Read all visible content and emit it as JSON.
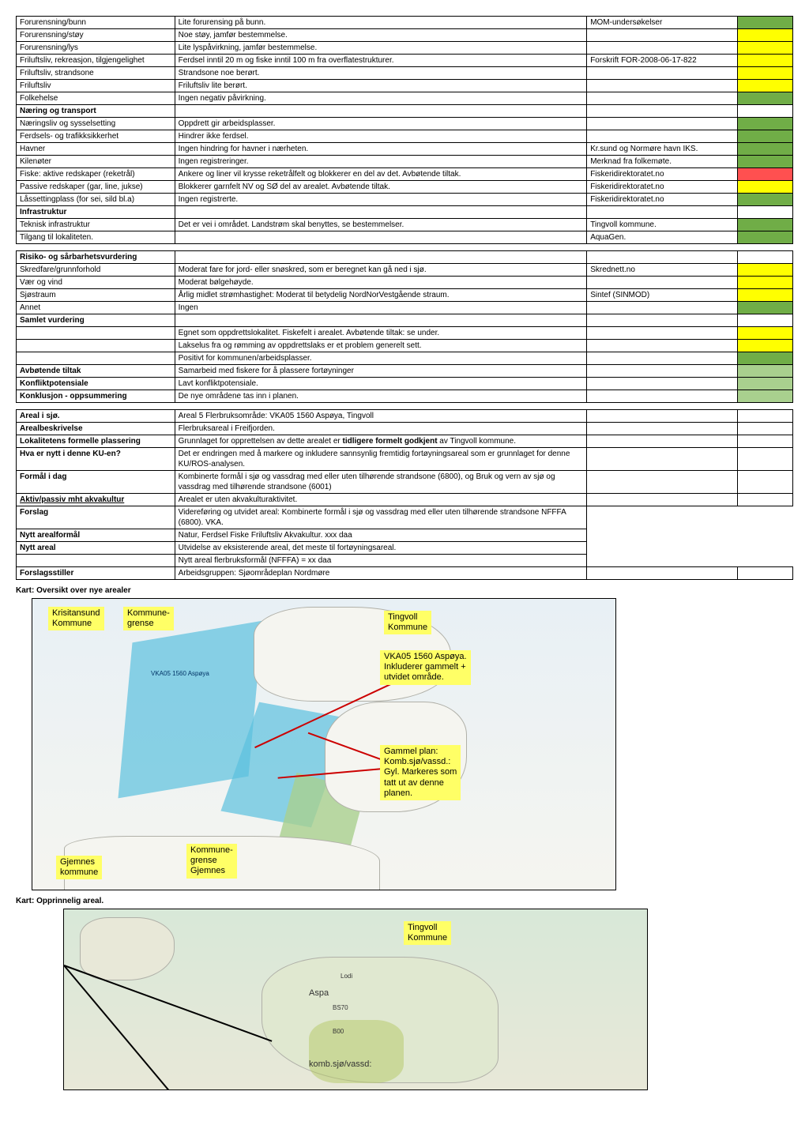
{
  "table1": {
    "rows": [
      {
        "c1": "Forurensning/bunn",
        "c2": "Lite forurensing på bunn.",
        "c3": "MOM-undersøkelser",
        "color": "green"
      },
      {
        "c1": "Forurensning/støy",
        "c2": "Noe støy, jamfør bestemmelse.",
        "c3": "",
        "color": "yellow"
      },
      {
        "c1": "Forurensning/lys",
        "c2": "Lite lyspåvirkning, jamfør bestemmelse.",
        "c3": "",
        "color": "yellow"
      },
      {
        "c1": "Friluftsliv, rekreasjon, tilgjengelighet",
        "c2": "Ferdsel inntil 20 m og fiske inntil 100 m fra overflatestrukturer.",
        "c3": "Forskrift FOR-2008-06-17-822",
        "color": "yellow"
      },
      {
        "c1": "Friluftsliv, strandsone",
        "c2": "Strandsone noe berørt.",
        "c3": "",
        "color": "yellow"
      },
      {
        "c1": "Friluftsliv",
        "c2": "Friluftsliv lite berørt.",
        "c3": "",
        "color": "yellow"
      },
      {
        "c1": "Folkehelse",
        "c2": "Ingen negativ påvirkning.",
        "c3": "",
        "color": "green"
      },
      {
        "c1": "Næring og transport",
        "c2": "",
        "c3": "",
        "color": "",
        "bold": true
      },
      {
        "c1": "Næringsliv og sysselsetting",
        "c2": "Oppdrett gir arbeidsplasser.",
        "c3": "",
        "color": "green"
      },
      {
        "c1": "Ferdsels- og trafikksikkerhet",
        "c2": "Hindrer ikke ferdsel.",
        "c3": "",
        "color": "green"
      },
      {
        "c1": "Havner",
        "c2": "Ingen hindring for havner i nærheten.",
        "c3": "Kr.sund og Normøre havn IKS.",
        "color": "green"
      },
      {
        "c1": "Kilenøter",
        "c2": "Ingen registreringer.",
        "c3": "Merknad fra folkemøte.",
        "color": "green"
      },
      {
        "c1": "Fiske: aktive redskaper (reketrål)",
        "c2": "Ankere og liner vil krysse reketrålfelt og blokkerer en del av det. Avbøtende tiltak.",
        "c3": "Fiskeridirektoratet.no",
        "color": "red"
      },
      {
        "c1": "Passive redskaper (gar, line, jukse)",
        "c2": "Blokkerer garnfelt NV og SØ del av arealet. Avbøtende tiltak.",
        "c3": "Fiskeridirektoratet.no",
        "color": "yellow"
      },
      {
        "c1": "Låssettingplass (for sei, sild bl.a)",
        "c2": "Ingen registrerte.",
        "c3": "Fiskeridirektoratet.no",
        "color": "green"
      },
      {
        "c1": "Infrastruktur",
        "c2": "",
        "c3": "",
        "color": "",
        "bold": true
      },
      {
        "c1": "Teknisk infrastruktur",
        "c2": "Det er vei i området. Landstrøm skal benyttes, se bestemmelser.",
        "c3": "Tingvoll kommune.",
        "color": "green"
      },
      {
        "c1": "Tilgang til lokaliteten.",
        "c2": "",
        "c3": "AquaGen.",
        "color": "green"
      }
    ]
  },
  "table2": {
    "rows": [
      {
        "c1": "Risiko- og sårbarhetsvurdering",
        "c2": "",
        "c3": "",
        "color": "",
        "bold": true
      },
      {
        "c1": "Skredfare/grunnforhold",
        "c2": "Moderat fare for jord- eller snøskred, som er beregnet kan  gå ned i sjø.",
        "c3": "Skrednett.no",
        "color": "yellow"
      },
      {
        "c1": "Vær og vind",
        "c2": "Moderat bølgehøyde.",
        "c3": "",
        "color": "yellow"
      },
      {
        "c1": "Sjøstraum",
        "c2": "Årlig midlet strømhastighet: Moderat til betydelig NordNorVestgående straum.",
        "c3": "Sintef (SINMOD)",
        "color": "yellow"
      },
      {
        "c1": "Annet",
        "c2": "Ingen",
        "c3": "",
        "color": "green"
      },
      {
        "c1": "Samlet vurdering",
        "c2": "",
        "c3": "",
        "color": "",
        "bold": true
      },
      {
        "c1": "",
        "c2": "Egnet som oppdrettslokalitet. Fiskefelt i arealet. Avbøtende tiltak: se under.",
        "c3": "",
        "color": "yellow"
      },
      {
        "c1": "",
        "c2": "Lakselus fra og rømming av oppdrettslaks er et problem generelt sett.",
        "c3": "",
        "color": "yellow"
      },
      {
        "c1": "",
        "c2": "Positivt for kommunen/arbeidsplasser.",
        "c3": "",
        "color": "green"
      },
      {
        "c1": "Avbøtende tiltak",
        "c2": "Samarbeid med fiskere for å plassere fortøyninger",
        "c3": "",
        "color": "lightgreen",
        "bold": true
      },
      {
        "c1": "Konfliktpotensiale",
        "c2": "Lavt konfliktpotensiale.",
        "c3": "",
        "color": "lightgreen",
        "bold": true
      },
      {
        "c1": "Konklusjon - oppsummering",
        "c2": "De nye områdene tas inn i planen.",
        "c3": "",
        "color": "lightgreen",
        "bold": true
      }
    ]
  },
  "table3": {
    "rows": [
      {
        "c1": "Areal i sjø.",
        "c2": "Areal 5 Flerbruksområde: VKA05 1560 Aspøya, Tingvoll",
        "c3": "",
        "color": "",
        "bold": true,
        "wide": false
      },
      {
        "c1": "Arealbeskrivelse",
        "c2": "Flerbruksareal i Freifjorden.",
        "c3": "",
        "bold": true
      },
      {
        "c1": "Lokalitetens formelle plassering",
        "c2": "Grunnlaget for opprettelsen av dette arealet er <b>tidligere formelt godkjent</b> av Tingvoll kommune.",
        "c3": "",
        "bold": true,
        "html": true
      },
      {
        "c1": "Hva er nytt i denne KU-en?",
        "c2": "Det er endringen med å markere og inkludere sannsynlig fremtidig fortøyningsareal som er grunnlaget for denne KU/ROS-analysen.",
        "c3": "",
        "bold": true
      },
      {
        "c1": "Formål i dag",
        "c2": "Kombinerte formål i sjø og vassdrag med eller uten tilhørende strandsone (6800), og Bruk og vern av sjø og vassdrag med tilhørende strandsone (6001)",
        "c3": "",
        "bold": true
      },
      {
        "c1": "Aktiv/passiv mht akvakultur",
        "c2": "Arealet er uten akvakulturaktivitet.",
        "c3": "",
        "bold": true,
        "underline": true
      },
      {
        "c1": "Forslag",
        "c2": "Videreføring og utvidet areal: Kombinerte formål i sjø og vassdrag med eller uten tilhørende strandsone NFFFA (6800). VKA.",
        "c3": "",
        "bold": true,
        "wide": true
      },
      {
        "c1": "Nytt arealformål",
        "c2": "Natur, Ferdsel Fiske Friluftsliv Akvakultur. xxx daa",
        "c3": "",
        "bold": true,
        "wide": true
      },
      {
        "c1": "Nytt areal",
        "c2": "Utvidelse av eksisterende areal, det meste til fortøyningsareal.",
        "c3": "",
        "bold": true,
        "wide": true
      },
      {
        "c1": "",
        "c2": "Nytt areal flerbruksformål (NFFFA) = xx daa",
        "c3": "",
        "bold": false,
        "wide": true
      },
      {
        "c1": "Forslagsstiller",
        "c2": "Arbeidsgruppen: Sjøområdeplan Nordmøre",
        "c3": "",
        "bold": true
      }
    ]
  },
  "captions": {
    "map1": "Kart: Oversikt over nye arealer",
    "map2": "Kart: Opprinnelig areal."
  },
  "map1_labels": {
    "l1": "Krisitansund\nKommune",
    "l2": "Kommune-\ngrense",
    "l3": "Tingvoll\nKommune",
    "l4": "VKA05 1560 Aspøya.\nInkluderer gammelt +\nutvidet område.",
    "l5": "Gammel plan:\nKomb.sjø/vassd.:\nGyl. Markeres som\ntatt ut av denne\nplanen.",
    "l6": "Gjemnes\nkommune",
    "l7": "Kommune-\ngrense\nGjemnes",
    "small1": "VKA05 1560 Aspøya"
  },
  "map2_labels": {
    "l1": "Tingvoll\nKommune",
    "l2": "Aspa",
    "l3": "komb.sjø/vassd:"
  },
  "colors": {
    "green": "#70ad47",
    "lightgreen": "#a9d08e",
    "yellow": "#ffff00",
    "red": "#ff5050",
    "highlight": "#ffff66",
    "water": "#5bc0de"
  }
}
